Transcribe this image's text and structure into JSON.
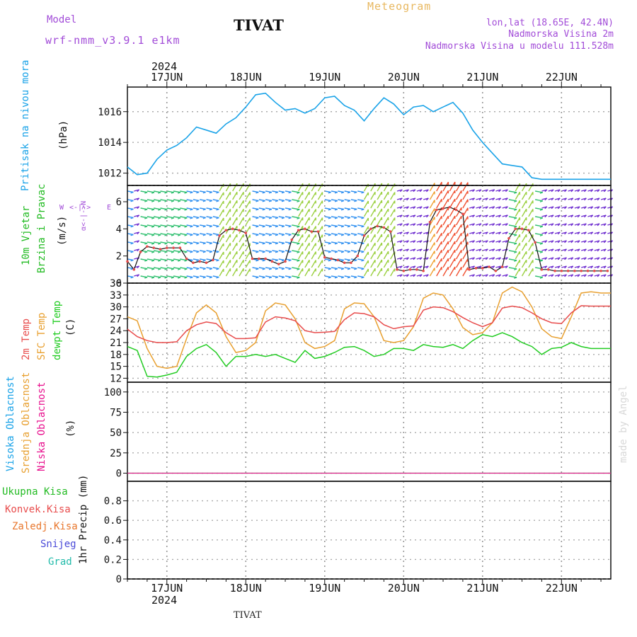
{
  "header": {
    "model_label": "Model",
    "model_name": "wrf-nmm_v3.9.1 e1km",
    "station": "TIVAT",
    "product": "Meteogram",
    "lonlat": "lon,lat (18.65E, 42.4N)",
    "elevation": "Nadmorska Visina 2m",
    "model_elevation": "Nadmorska Visina u modelu 111.528m",
    "year": "2024",
    "footer_station": "TIVAT",
    "credit": "made by Angel"
  },
  "colors": {
    "pressure": "#1aa3e8",
    "wind_label": "#22bb22",
    "temp2m": "#e84c4c",
    "sfc_temp": "#e8a030",
    "dewpt": "#22cc22",
    "high_cloud": "#1aa3e8",
    "mid_cloud": "#e8a030",
    "low_cloud": "#e8118e",
    "purple": "#a24cd8"
  },
  "day_labels": [
    "17JUN",
    "18JUN",
    "19JUN",
    "20JUN",
    "21JUN",
    "22JUN"
  ],
  "panels": {
    "pressure": {
      "label": "Pritisak na nivou mora",
      "unit": "(hPa)"
    },
    "wind": {
      "label1": "10m Vjetar",
      "label2": "Brzina i Pravac",
      "unit": "(m/s)",
      "compass_ns": "α<-|->N",
      "compass_w": "W",
      "compass_e": "E"
    },
    "temp": {
      "label1": "2m Temp",
      "label2": "SFC Temp",
      "label3": "dewpt Temp",
      "unit": "(C)"
    },
    "cloud": {
      "label1": "Visoka Oblacnost",
      "label2": "Srednja Oblacnost",
      "label3": "Niska Oblacnost",
      "unit": "(%)"
    },
    "precip": {
      "unit": "1hr Precip (mm)",
      "legend": [
        "Ukupna Kisa",
        "Konvek.Kisa",
        "Zaledj.Kisa",
        "Snijeg",
        "Grad"
      ]
    }
  },
  "chart_data": [
    {
      "type": "line",
      "title": "",
      "ylabel": "Pritisak na nivou mora (hPa)",
      "xlabel": "",
      "ylim": [
        1011.2,
        1017.6
      ],
      "yticks": [
        1012,
        1014,
        1016
      ],
      "x_hours": [
        0,
        3,
        6,
        9,
        12,
        15,
        18,
        21,
        24,
        27,
        30,
        33,
        36,
        39,
        42,
        45,
        48,
        51,
        54,
        57,
        60,
        63,
        66,
        69,
        72,
        75,
        78,
        81,
        84,
        87,
        90,
        93,
        96,
        99,
        102,
        105,
        108,
        111,
        114,
        117,
        120,
        123,
        126,
        129,
        132,
        135,
        138,
        141,
        144,
        147
      ],
      "series": [
        {
          "name": "Pritisak",
          "values": [
            1012.4,
            1011.9,
            1012.0,
            1012.9,
            1013.5,
            1013.8,
            1014.3,
            1015.0,
            1014.8,
            1014.6,
            1015.2,
            1015.6,
            1016.3,
            1017.1,
            1017.2,
            1016.6,
            1016.1,
            1016.2,
            1015.9,
            1016.2,
            1016.9,
            1017.0,
            1016.4,
            1016.1,
            1015.4,
            1016.2,
            1016.9,
            1016.5,
            1015.8,
            1016.3,
            1016.4,
            1016.0,
            1016.3,
            1016.6,
            1015.9,
            1014.8,
            1014.0,
            1013.3,
            1012.6,
            1012.5,
            1012.4,
            1011.7,
            1011.6,
            1011.6,
            1011.6,
            1011.6,
            1011.6,
            1011.6,
            1011.6,
            1011.6
          ]
        }
      ]
    },
    {
      "type": "line",
      "title": "",
      "ylabel": "10m Vjetar Brzina i Pravac (m/s)",
      "ylim": [
        0,
        7.2
      ],
      "yticks": [
        0,
        2,
        4,
        6
      ],
      "x_hours": [
        0,
        2,
        4,
        6,
        8,
        10,
        12,
        14,
        16,
        18,
        20,
        22,
        24,
        26,
        28,
        30,
        32,
        34,
        36,
        38,
        40,
        42,
        44,
        46,
        48,
        50,
        52,
        54,
        56,
        58,
        60,
        62,
        64,
        66,
        68,
        70,
        72,
        74,
        76,
        78,
        80,
        82,
        84,
        86,
        88,
        90,
        92,
        94,
        96,
        98,
        100,
        102,
        104,
        106,
        108,
        110,
        112,
        114,
        116,
        118,
        120,
        122,
        124,
        126,
        128,
        130,
        132,
        134,
        136,
        138,
        140,
        142,
        144,
        146
      ],
      "series": [
        {
          "name": "Brzina",
          "values": [
            1.6,
            1.0,
            2.3,
            2.7,
            2.6,
            2.5,
            2.6,
            2.6,
            2.6,
            1.8,
            1.5,
            1.6,
            1.5,
            1.7,
            3.5,
            3.9,
            4.0,
            3.9,
            3.7,
            1.8,
            1.8,
            1.8,
            1.6,
            1.4,
            1.6,
            3.2,
            3.9,
            4.0,
            3.8,
            3.8,
            1.9,
            1.8,
            1.7,
            1.5,
            1.5,
            2.0,
            3.5,
            4.0,
            4.2,
            4.1,
            3.8,
            1.0,
            0.9,
            1.0,
            1.0,
            0.9,
            4.5,
            5.4,
            5.5,
            5.6,
            5.4,
            5.1,
            1.0,
            1.1,
            1.1,
            1.2,
            0.9,
            1.2,
            3.3,
            4.0,
            4.0,
            3.9,
            3.0,
            1.0,
            1.0,
            0.9,
            0.9,
            0.9,
            0.9,
            0.9,
            0.9,
            0.9,
            0.9,
            0.9
          ]
        }
      ]
    },
    {
      "type": "line",
      "title": "",
      "ylabel": "Temp (C)",
      "ylim": [
        11,
        36
      ],
      "yticks": [
        12,
        15,
        18,
        21,
        24,
        27,
        30,
        33,
        36
      ],
      "x_hours": [
        0,
        3,
        6,
        9,
        12,
        15,
        18,
        21,
        24,
        27,
        30,
        33,
        36,
        39,
        42,
        45,
        48,
        51,
        54,
        57,
        60,
        63,
        66,
        69,
        72,
        75,
        78,
        81,
        84,
        87,
        90,
        93,
        96,
        99,
        102,
        105,
        108,
        111,
        114,
        117,
        120,
        123,
        126,
        129,
        132,
        135,
        138,
        141,
        144,
        147
      ],
      "series": [
        {
          "name": "2m Temp",
          "values": [
            24.4,
            22.5,
            21.5,
            21.0,
            21.0,
            21.2,
            24.0,
            25.5,
            26.2,
            25.8,
            23.5,
            22.0,
            22.0,
            22.2,
            26.2,
            27.5,
            27.2,
            26.5,
            24.0,
            23.5,
            23.6,
            23.8,
            26.8,
            28.5,
            28.3,
            27.5,
            25.5,
            24.5,
            25.0,
            25.2,
            29.2,
            30.0,
            29.8,
            28.8,
            27.3,
            26.0,
            25.0,
            26.0,
            29.7,
            30.2,
            29.8,
            28.5,
            27.0,
            26.0,
            25.8,
            28.5,
            30.3,
            30.2,
            30.2,
            30.2
          ]
        },
        {
          "name": "SFC Temp",
          "values": [
            27.5,
            26.5,
            19.5,
            15.0,
            14.5,
            15.0,
            22.0,
            28.5,
            30.5,
            28.5,
            22.5,
            18.5,
            19.0,
            21.0,
            29.0,
            31.0,
            30.5,
            27.0,
            21.0,
            19.5,
            20.0,
            21.5,
            29.5,
            31.0,
            30.8,
            27.5,
            21.5,
            21.0,
            21.5,
            25.0,
            32.2,
            33.5,
            33.0,
            29.5,
            24.8,
            23.0,
            23.5,
            26.0,
            33.5,
            35.0,
            33.8,
            30.0,
            24.5,
            22.5,
            22.0,
            27.5,
            33.5,
            33.8,
            33.5,
            33.5
          ]
        },
        {
          "name": "dewpt Temp",
          "values": [
            20.0,
            19.0,
            12.5,
            12.3,
            12.8,
            13.5,
            17.5,
            19.5,
            20.5,
            18.5,
            15.0,
            17.5,
            17.5,
            18.0,
            17.5,
            18.0,
            17.0,
            16.0,
            19.0,
            17.0,
            17.5,
            18.5,
            19.8,
            20.0,
            19.0,
            17.5,
            18.0,
            19.5,
            19.5,
            19.0,
            20.5,
            20.0,
            19.8,
            20.5,
            19.5,
            21.5,
            23.0,
            22.5,
            23.5,
            22.5,
            21.0,
            20.0,
            18.0,
            19.5,
            19.8,
            21.0,
            20.0,
            19.5,
            19.5,
            19.5
          ]
        }
      ]
    },
    {
      "type": "line",
      "title": "",
      "ylabel": "Oblacnost (%)",
      "ylim": [
        -10,
        112
      ],
      "yticks": [
        0,
        25,
        50,
        75,
        100
      ],
      "x_hours": [
        0,
        147
      ],
      "series": [
        {
          "name": "Visoka Oblacnost",
          "values": [
            0,
            0
          ]
        },
        {
          "name": "Srednja Oblacnost",
          "values": [
            0,
            0
          ]
        },
        {
          "name": "Niska Oblacnost",
          "values": [
            0,
            0
          ]
        }
      ]
    },
    {
      "type": "bar",
      "title": "",
      "ylabel": "1hr Precip (mm)",
      "ylim": [
        0,
        1.0
      ],
      "yticks": [
        0,
        0.2,
        0.4,
        0.6,
        0.8
      ],
      "x_hours": [
        0,
        147
      ],
      "series": [
        {
          "name": "Ukupna Kisa",
          "values": [
            0,
            0
          ]
        },
        {
          "name": "Konvek.Kisa",
          "values": [
            0,
            0
          ]
        },
        {
          "name": "Zaledj.Kisa",
          "values": [
            0,
            0
          ]
        },
        {
          "name": "Snijeg",
          "values": [
            0,
            0
          ]
        },
        {
          "name": "Grad",
          "values": [
            0,
            0
          ]
        }
      ]
    }
  ]
}
